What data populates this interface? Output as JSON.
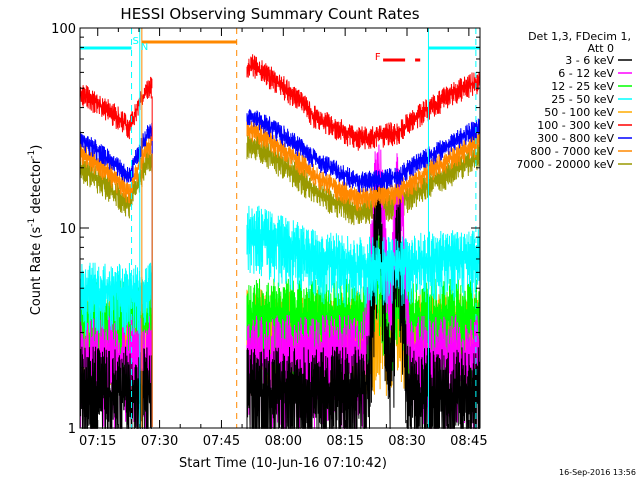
{
  "chart_data": {
    "type": "line",
    "title": "HESSI Observing Summary Count Rates",
    "xlabel": "Start Time (10-Jun-16 07:10:42)",
    "ylabel_main": "Count Rate (s",
    "ylabel_sup1": "-1",
    "ylabel_mid": " detector",
    "ylabel_sup2": "-1",
    "ylabel_end": ")",
    "yscale": "log",
    "ylim": [
      1,
      100
    ],
    "xlim_minutes": [
      0,
      97
    ],
    "x_ticks": [
      {
        "label": "07:15",
        "minute": 4.3
      },
      {
        "label": "07:30",
        "minute": 19.3
      },
      {
        "label": "07:45",
        "minute": 34.3
      },
      {
        "label": "08:00",
        "minute": 49.3
      },
      {
        "label": "08:15",
        "minute": 64.3
      },
      {
        "label": "08:30",
        "minute": 79.3
      },
      {
        "label": "08:45",
        "minute": 94.3
      }
    ],
    "y_ticks": [
      {
        "label": "1",
        "value": 1
      },
      {
        "label": "10",
        "value": 10
      },
      {
        "label": "100",
        "value": 100
      }
    ],
    "legend_header": [
      "Det 1,3, FDecim 1,",
      "Att 0"
    ],
    "series": [
      {
        "name": "3 - 6 keV",
        "color": "#000000",
        "base": [
          1.5,
          1.5,
          1.5,
          1.5,
          1.5,
          1.5,
          1.5,
          1.5,
          1.5
        ]
      },
      {
        "name": "6 - 12 keV",
        "color": "#ff00ff",
        "base": [
          2.3,
          2.3,
          2.3,
          2.3,
          2.3,
          2.3,
          2.3,
          2.3,
          2.3
        ]
      },
      {
        "name": "12 - 25 keV",
        "color": "#00ff00",
        "base": [
          3.6,
          3.6,
          3.6,
          3.6,
          3.6,
          3.6,
          3.6,
          3.6,
          3.6
        ]
      },
      {
        "name": "25 - 50 keV",
        "color": "#00ffff",
        "base": [
          4.8,
          4.8,
          4.8,
          9.5,
          7.0,
          6.5,
          6.5,
          7.0,
          7.5
        ]
      },
      {
        "name": "50 - 100 keV",
        "color": "#ffaa00",
        "base": [
          3.2,
          3.2,
          3.2,
          3.2,
          3.2,
          3.2,
          3.2,
          3.2,
          3.2
        ]
      },
      {
        "name": "100 - 300 keV",
        "color": "#ff0000",
        "base": [
          48,
          32,
          50,
          65,
          36,
          28,
          30,
          44,
          55
        ]
      },
      {
        "name": "300 - 800 keV",
        "color": "#0000ff",
        "base": [
          28,
          18,
          30,
          36,
          22,
          17,
          18,
          25,
          32
        ]
      },
      {
        "name": "800 - 7000 keV",
        "color": "#ff8800",
        "base": [
          24,
          15,
          26,
          31,
          18,
          14,
          15,
          21,
          27
        ]
      },
      {
        "name": "7000 - 20000 keV",
        "color": "#999900",
        "base": [
          20,
          13,
          22,
          26,
          15,
          12,
          13,
          18,
          23
        ]
      }
    ],
    "segments_minutes": [
      [
        0,
        17.5
      ],
      [
        40.5,
        97
      ]
    ],
    "gap_minutes": [
      17.5,
      40.5
    ],
    "flare_peak_minutes": [
      72.3,
      77.3
    ],
    "markers": [
      {
        "label": "S",
        "color": "#00ffff",
        "minute": 12.5
      },
      {
        "label": "N",
        "color": "#00ffff",
        "minute": 14.5
      },
      {
        "label": "F",
        "color": "#ff0000",
        "minute": 72.0
      }
    ],
    "bars": [
      {
        "color": "#00ffff",
        "from_minute": 0,
        "to_minute": 12.5
      },
      {
        "color": "#ff8800",
        "from_minute": 15.0,
        "to_minute": 38.0
      },
      {
        "color": "#ff0000",
        "from_minute": 73.5,
        "to_minute": 82.5
      },
      {
        "color": "#00ffff",
        "from_minute": 84.5,
        "to_minute": 97
      }
    ],
    "vlines": [
      {
        "color": "#00ffff",
        "minute": 12.5,
        "style": "dashed"
      },
      {
        "color": "#00ffff",
        "minute": 14.5,
        "style": "solid"
      },
      {
        "color": "#ff8800",
        "minute": 15.0,
        "style": "solid"
      },
      {
        "color": "#ff8800",
        "minute": 38.0,
        "style": "dashed"
      },
      {
        "color": "#00ffff",
        "minute": 84.5,
        "style": "solid"
      },
      {
        "color": "#00ffff",
        "minute": 96.0,
        "style": "dashed"
      }
    ]
  },
  "timestamp": "16-Sep-2016 13:56"
}
